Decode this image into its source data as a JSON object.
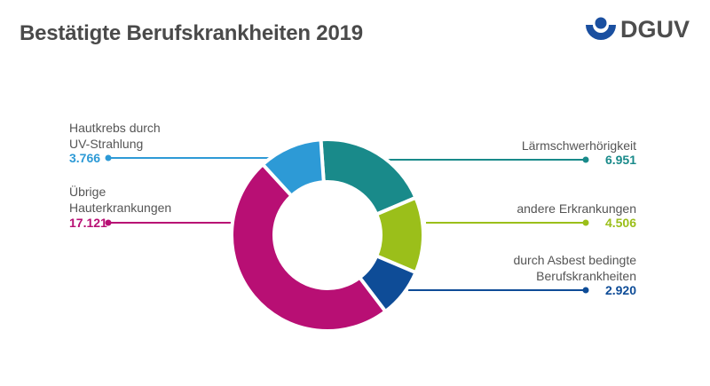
{
  "header": {
    "title": "Bestätigte Berufskrankheiten 2019",
    "logo_text": "DGUV",
    "logo_color": "#1a4fa0"
  },
  "chart_data": {
    "type": "pie",
    "variant": "donut",
    "title": "Bestätigte Berufskrankheiten 2019",
    "categories": [
      "Lärmschwerhörigkeit",
      "andere Erkrankungen",
      "durch Asbest bedingte Berufskrankheiten",
      "Übrige Hauterkrankungen",
      "Hautkrebs durch UV-Strahlung"
    ],
    "values": [
      6951,
      4506,
      2920,
      17121,
      3766
    ],
    "value_labels": [
      "6.951",
      "4.506",
      "2.920",
      "17.121",
      "3.766"
    ],
    "colors": [
      "#198a8a",
      "#9bbf1a",
      "#0e4c97",
      "#b80f74",
      "#2d9ad6"
    ],
    "label_lines": [
      [
        "Lärmschwerhörigkeit"
      ],
      [
        "andere Erkrankungen"
      ],
      [
        "durch Asbest bedingte",
        "Berufskrankheiten"
      ],
      [
        "Übrige",
        "Hauterkrankungen"
      ],
      [
        "Hautkrebs durch",
        "UV-Strahlung"
      ]
    ],
    "legend": "callouts"
  }
}
